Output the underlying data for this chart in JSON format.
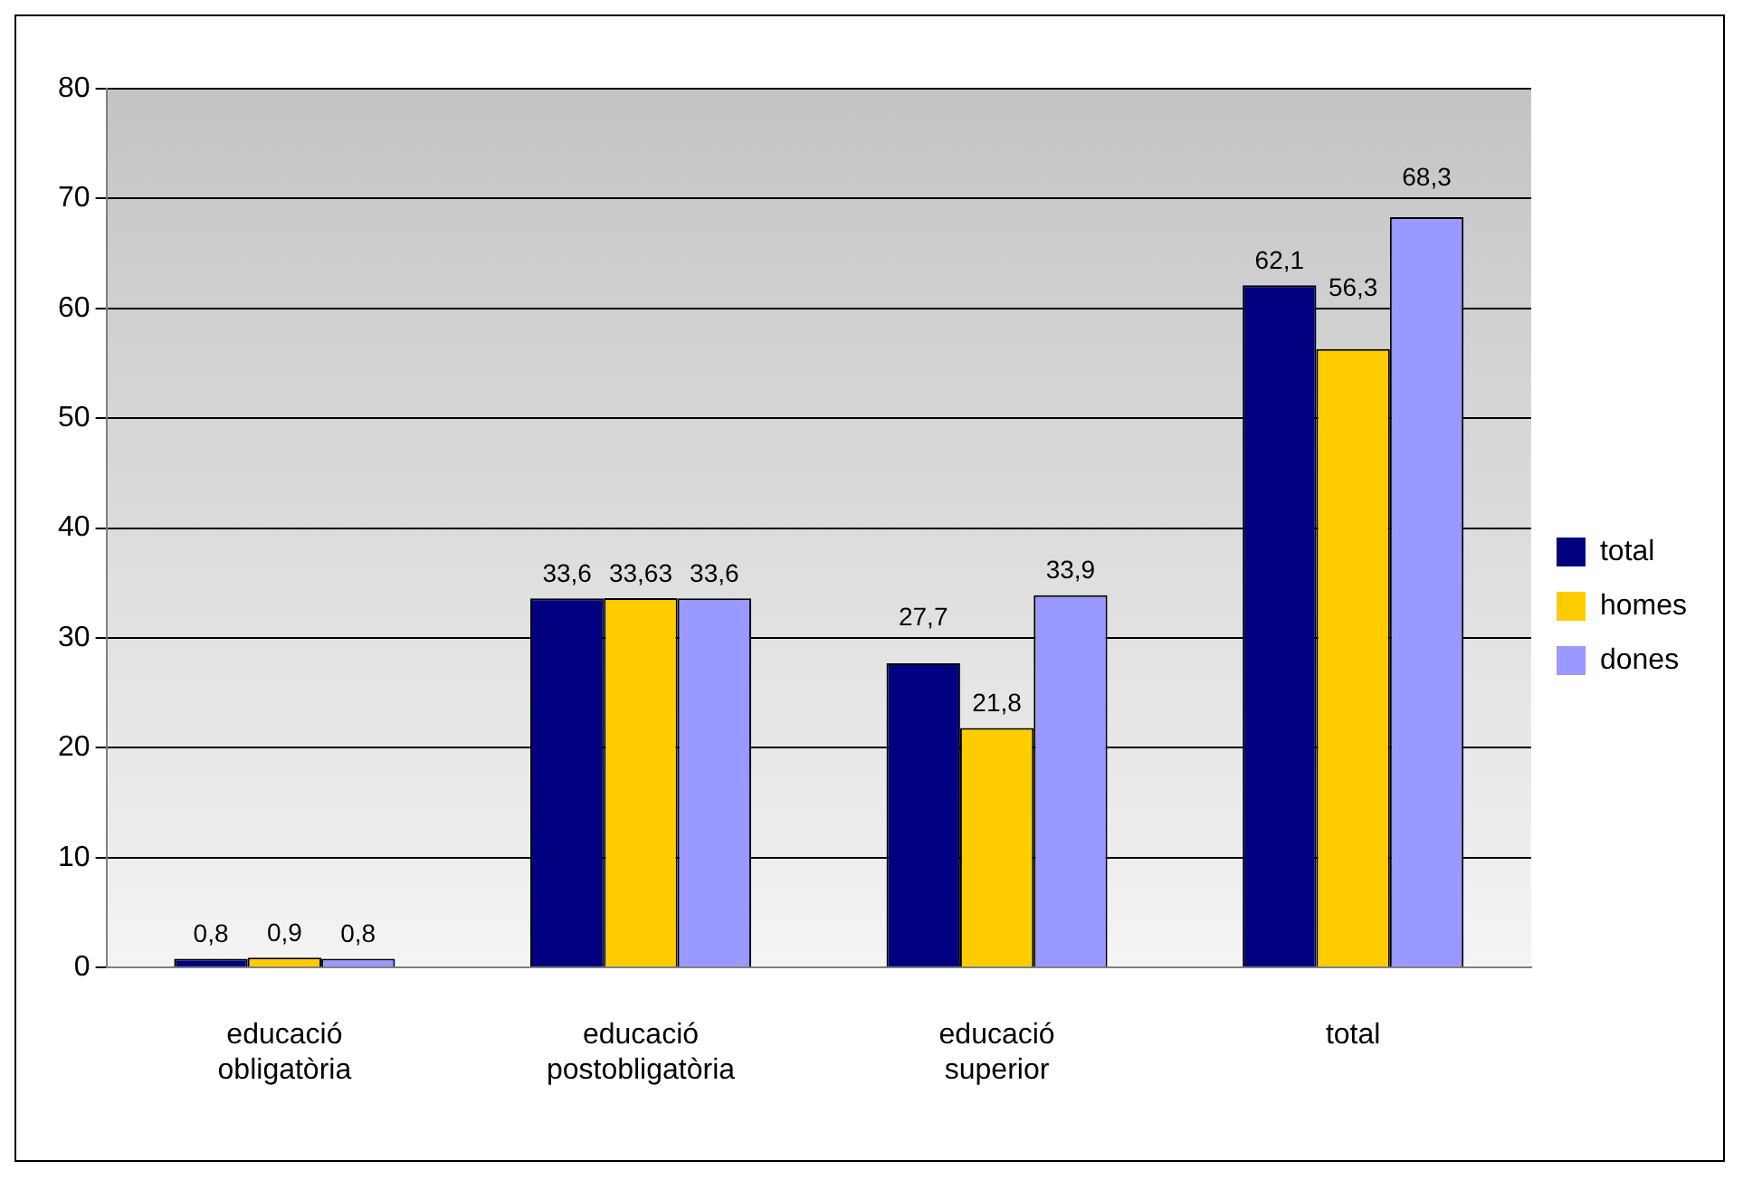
{
  "chart_data": {
    "type": "bar",
    "categories": [
      "educació obligatòria",
      "educació postobligatòria",
      "educació superior",
      "total"
    ],
    "series": [
      {
        "name": "total",
        "color": "#000080",
        "values": [
          0.8,
          33.6,
          27.7,
          62.1
        ],
        "value_labels": [
          "0,8",
          "33,6",
          "27,7",
          "62,1"
        ]
      },
      {
        "name": "homes",
        "color": "#ffcc00",
        "values": [
          0.9,
          33.63,
          21.8,
          56.3
        ],
        "value_labels": [
          "0,9",
          "33,63",
          "21,8",
          "56,3"
        ]
      },
      {
        "name": "dones",
        "color": "#9999ff",
        "values": [
          0.8,
          33.6,
          33.9,
          68.3
        ],
        "value_labels": [
          "0,8",
          "33,6",
          "33,9",
          "68,3"
        ]
      }
    ],
    "ylim": [
      0,
      80
    ],
    "yticks": [
      0,
      10,
      20,
      30,
      40,
      50,
      60,
      70,
      80
    ],
    "grid": "y",
    "legend": "right"
  }
}
